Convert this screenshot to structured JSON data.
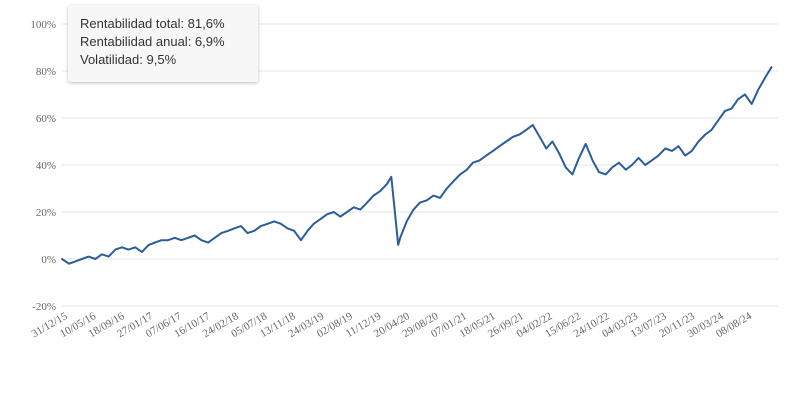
{
  "summary": {
    "total_return": "Rentabilidad total: 81,6%",
    "annual_return": "Rentabilidad anual: 6,9%",
    "volatility": "Volatilidad: 9,5%"
  },
  "colors": {
    "line": "#2b5d9b",
    "grid": "#e6e6e6",
    "tick_text": "#666666"
  },
  "chart_data": {
    "type": "line",
    "title": "",
    "xlabel": "",
    "ylabel": "",
    "ylim": [
      -20,
      100
    ],
    "yticks": [
      -20,
      0,
      20,
      40,
      60,
      80,
      100
    ],
    "ytick_labels": [
      "-20%",
      "0%",
      "20%",
      "40%",
      "60%",
      "80%",
      "100%"
    ],
    "xlim": [
      "2015-12-31",
      "2024-12-31"
    ],
    "xticks": [
      "2015-12-31",
      "2016-05-10",
      "2016-09-18",
      "2017-01-27",
      "2017-06-07",
      "2017-10-16",
      "2018-02-24",
      "2018-07-05",
      "2018-11-13",
      "2019-03-24",
      "2019-08-02",
      "2019-12-11",
      "2020-04-20",
      "2020-08-29",
      "2021-01-07",
      "2021-05-18",
      "2021-09-26",
      "2022-02-04",
      "2022-06-15",
      "2022-10-24",
      "2023-03-04",
      "2023-07-13",
      "2023-11-20",
      "2024-03-30",
      "2024-08-08"
    ],
    "xtick_labels": [
      "31/12/15",
      "10/05/16",
      "18/09/16",
      "27/01/17",
      "07/06/17",
      "16/10/17",
      "24/02/18",
      "05/07/18",
      "13/11/18",
      "24/03/19",
      "02/08/19",
      "11/12/19",
      "20/04/20",
      "29/08/20",
      "07/01/21",
      "18/05/21",
      "26/09/21",
      "04/02/22",
      "15/06/22",
      "24/10/22",
      "04/03/23",
      "13/07/23",
      "20/11/23",
      "30/03/24",
      "08/08/24"
    ],
    "grid": true,
    "legend": "none",
    "series": [
      {
        "x": [
          "2015-12-31",
          "2016-02-01",
          "2016-03-01",
          "2016-04-01",
          "2016-05-01",
          "2016-06-01",
          "2016-07-01",
          "2016-08-01",
          "2016-09-01",
          "2016-10-01",
          "2016-11-01",
          "2016-12-01",
          "2017-01-01",
          "2017-02-01",
          "2017-03-01",
          "2017-04-01",
          "2017-05-01",
          "2017-06-01",
          "2017-07-01",
          "2017-08-01",
          "2017-09-01",
          "2017-10-01",
          "2017-11-01",
          "2017-12-01",
          "2018-01-01",
          "2018-02-01",
          "2018-03-01",
          "2018-04-01",
          "2018-05-01",
          "2018-06-01",
          "2018-07-01",
          "2018-08-01",
          "2018-09-01",
          "2018-10-01",
          "2018-11-01",
          "2018-12-01",
          "2019-01-01",
          "2019-02-01",
          "2019-03-01",
          "2019-04-01",
          "2019-05-01",
          "2019-06-01",
          "2019-07-01",
          "2019-08-01",
          "2019-09-01",
          "2019-10-01",
          "2019-11-01",
          "2019-12-01",
          "2020-01-01",
          "2020-02-01",
          "2020-02-20",
          "2020-03-23",
          "2020-04-01",
          "2020-05-01",
          "2020-06-01",
          "2020-07-01",
          "2020-08-01",
          "2020-09-01",
          "2020-10-01",
          "2020-11-01",
          "2020-12-01",
          "2021-01-01",
          "2021-02-01",
          "2021-03-01",
          "2021-04-01",
          "2021-05-01",
          "2021-06-01",
          "2021-07-01",
          "2021-08-01",
          "2021-09-01",
          "2021-10-01",
          "2021-11-01",
          "2021-12-01",
          "2022-01-01",
          "2022-02-01",
          "2022-03-01",
          "2022-04-01",
          "2022-05-01",
          "2022-06-01",
          "2022-07-01",
          "2022-08-01",
          "2022-09-01",
          "2022-10-01",
          "2022-11-01",
          "2022-12-01",
          "2023-01-01",
          "2023-02-01",
          "2023-03-01",
          "2023-04-01",
          "2023-05-01",
          "2023-06-01",
          "2023-07-01",
          "2023-08-01",
          "2023-09-01",
          "2023-10-01",
          "2023-11-01",
          "2023-12-01",
          "2024-01-01",
          "2024-02-01",
          "2024-03-01",
          "2024-04-01",
          "2024-05-01",
          "2024-06-01",
          "2024-07-01",
          "2024-08-01",
          "2024-09-01",
          "2024-10-01",
          "2024-11-01",
          "2024-12-01"
        ],
        "values": [
          0,
          -2,
          -1,
          0,
          1,
          0,
          2,
          1,
          4,
          5,
          4,
          5,
          3,
          6,
          7,
          8,
          8,
          9,
          8,
          9,
          10,
          8,
          7,
          9,
          11,
          12,
          13,
          14,
          11,
          12,
          14,
          15,
          16,
          15,
          13,
          12,
          8,
          12,
          15,
          17,
          19,
          20,
          18,
          20,
          22,
          21,
          24,
          27,
          29,
          32,
          35,
          6,
          9,
          16,
          21,
          24,
          25,
          27,
          26,
          30,
          33,
          36,
          38,
          41,
          42,
          44,
          46,
          48,
          50,
          52,
          53,
          55,
          57,
          52,
          47,
          50,
          45,
          39,
          36,
          43,
          49,
          42,
          37,
          36,
          39,
          41,
          38,
          40,
          43,
          40,
          42,
          44,
          47,
          46,
          48,
          44,
          46,
          50,
          53,
          55,
          59,
          63,
          64,
          68,
          70,
          66,
          72,
          77,
          81.6
        ]
      }
    ]
  }
}
